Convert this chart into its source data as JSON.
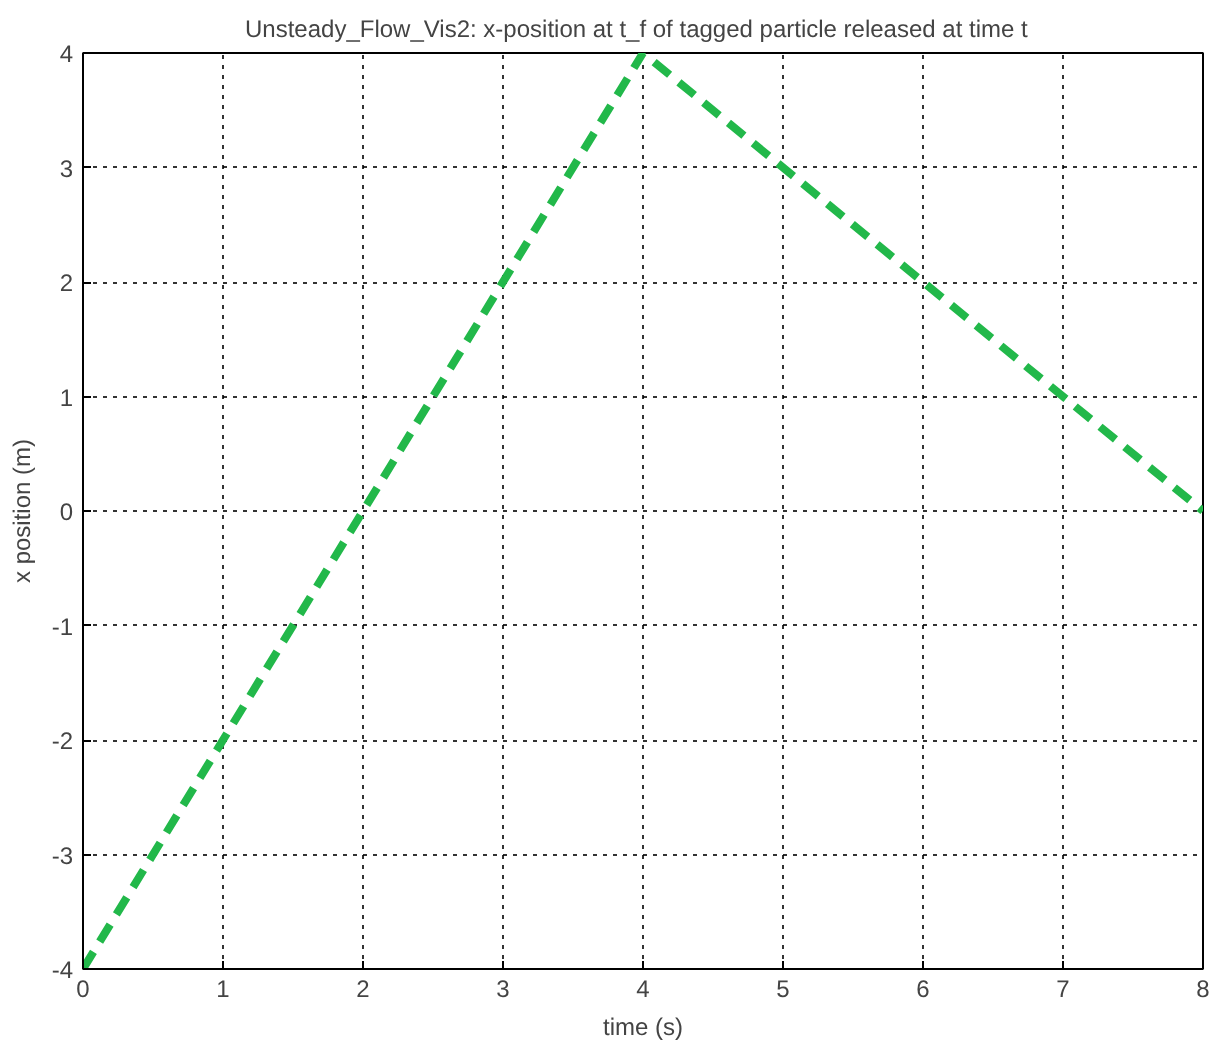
{
  "chart_data": {
    "type": "line",
    "title": "Unsteady_Flow_Vis2:   x-position at t_f of tagged particle released at time t",
    "xlabel": "time (s)",
    "ylabel": "x position (m)",
    "x": [
      0,
      4,
      8
    ],
    "series": [
      {
        "color": "#22b84a",
        "values": [
          -4,
          4,
          0
        ]
      }
    ],
    "xlim": [
      0,
      8
    ],
    "xticks": [
      0,
      1,
      2,
      3,
      4,
      5,
      6,
      7,
      8
    ],
    "ylim": [
      -4,
      4
    ],
    "yticks": [
      -4,
      -3,
      -2,
      -1,
      0,
      1,
      2,
      3,
      4
    ],
    "grid": true,
    "line_style": "dashed",
    "marker": "none"
  }
}
